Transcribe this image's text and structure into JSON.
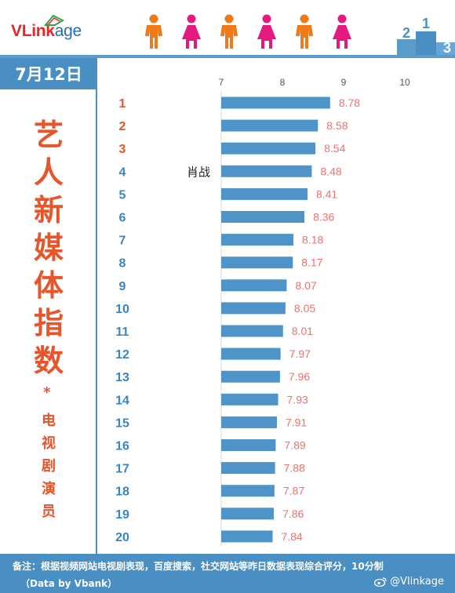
{
  "brand": {
    "logo_v": "V",
    "logo_link": "Link",
    "logo_age": "age",
    "accent_red": "#e8252b",
    "accent_blue": "#1f6fb5",
    "person_colors": [
      "#f07a1a",
      "#e6197e",
      "#f07a1a",
      "#e6197e",
      "#f07a1a",
      "#e6197e"
    ],
    "podium_labels": [
      "2",
      "1",
      "3"
    ]
  },
  "date_label": "7月12日",
  "title": {
    "big_chars": [
      "艺",
      "人",
      "新",
      "媒",
      "体",
      "指",
      "数"
    ],
    "star": "*",
    "small_chars": [
      "电",
      "视",
      "剧",
      "演",
      "员"
    ]
  },
  "footer": {
    "note": "备注：根据视频网站电视剧表现，百度搜索，社交网站等昨日数据表现综合评分，10分制",
    "credit": "（Data by Vbank）",
    "handle": "@Vlinkage"
  },
  "chart_data": {
    "type": "bar",
    "orientation": "horizontal",
    "categories": [
      "1",
      "2",
      "3",
      "4",
      "5",
      "6",
      "7",
      "8",
      "9",
      "10",
      "11",
      "12",
      "13",
      "14",
      "15",
      "16",
      "17",
      "18",
      "19",
      "20"
    ],
    "names": [
      "",
      "",
      "",
      "肖战",
      "",
      "",
      "",
      "",
      "",
      "",
      "",
      "",
      "",
      "",
      "",
      "",
      "",
      "",
      "",
      ""
    ],
    "values": [
      8.78,
      8.58,
      8.54,
      8.48,
      8.41,
      8.36,
      8.18,
      8.17,
      8.07,
      8.05,
      8.01,
      7.97,
      7.96,
      7.93,
      7.91,
      7.89,
      7.88,
      7.87,
      7.86,
      7.84
    ],
    "value_labels": [
      "8.78",
      "8.58",
      "8.54",
      "8.48",
      "8.41",
      "8.36",
      "8.18",
      "8.17",
      "8.07",
      "8.05",
      "8.01",
      "7.97",
      "7.96",
      "7.93",
      "7.91",
      "7.89",
      "7.88",
      "7.87",
      "7.86",
      "7.84"
    ],
    "xlim": [
      7,
      10
    ],
    "xticks": [
      "7",
      "8",
      "9",
      "10"
    ],
    "bar_color": "#4f94c8",
    "value_label_color": "#e8736f",
    "rank_color_top": "#e8552b",
    "rank_color_rest": "#3a85c0",
    "top_highlight_count": 3,
    "grid": false
  }
}
